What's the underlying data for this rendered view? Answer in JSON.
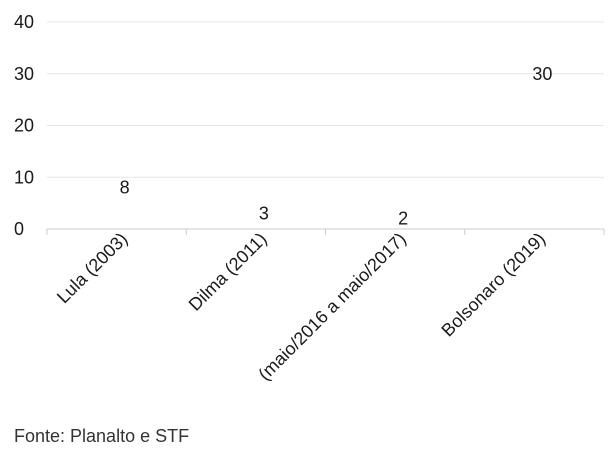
{
  "chart_data": {
    "type": "bar",
    "categories": [
      "Lula (2003)",
      "Dilma (2011)",
      "(maio/2016 a maio/2017)",
      "Bolsonaro (2019)"
    ],
    "values": [
      8,
      3,
      2,
      30
    ],
    "data_labels": [
      "8",
      "3",
      "2",
      "30"
    ],
    "y_ticks": [
      "0",
      "10",
      "20",
      "30",
      "40"
    ],
    "ylim": [
      0,
      40
    ],
    "grid": true,
    "colors": {
      "grid": "#e6e6e6",
      "axis": "#cccccc",
      "text": "#1a1a1a",
      "bar": "none"
    }
  },
  "source": "Fonte: Planalto e STF"
}
